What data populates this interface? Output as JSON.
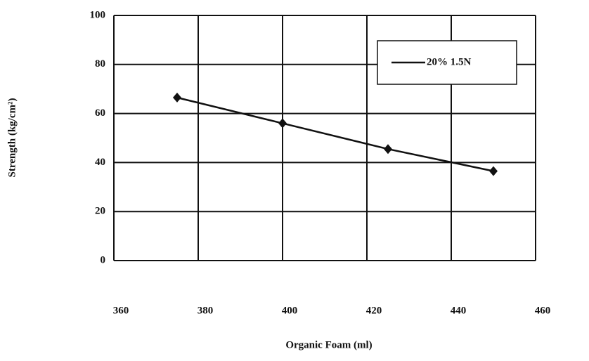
{
  "chart_data": {
    "type": "line",
    "x_label": "Organic Foam (ml)",
    "y_label": "Strength (kg/cm²)",
    "x": [
      375,
      400,
      425,
      450
    ],
    "series": [
      {
        "name": "20% 1.5N",
        "color": "#111111",
        "values": [
          66.5,
          56,
          45.5,
          36.5
        ]
      }
    ],
    "xlim": [
      360,
      460
    ],
    "xticks": [
      360,
      380,
      400,
      420,
      440,
      460
    ],
    "ylim": [
      0,
      100
    ],
    "yticks": [
      0,
      20,
      40,
      60,
      80,
      100
    ],
    "grid": true,
    "legend": "upper right"
  }
}
